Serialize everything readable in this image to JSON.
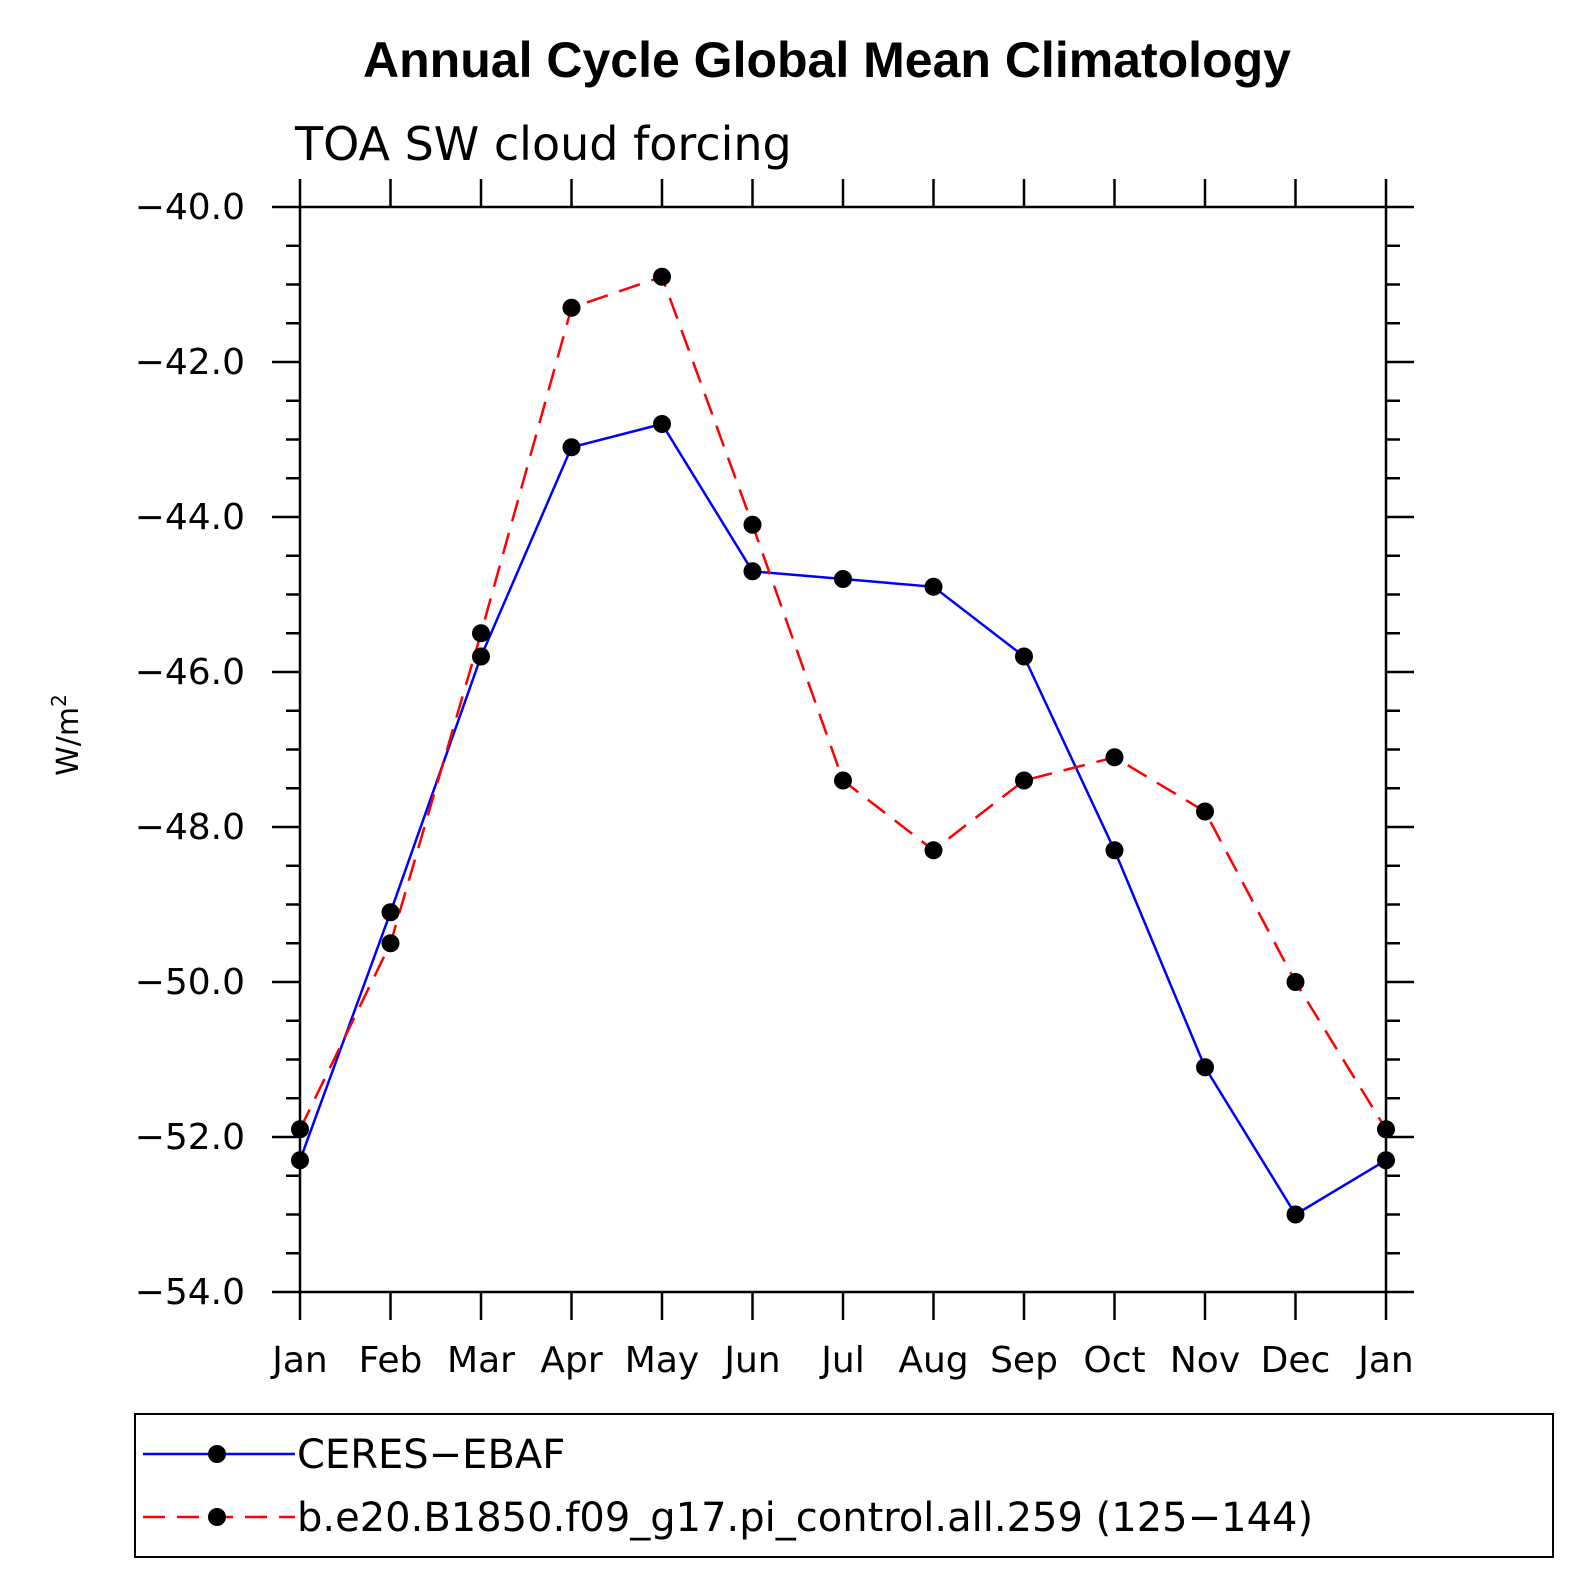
{
  "chart_data": {
    "type": "line",
    "title": "Annual Cycle Global Mean Climatology",
    "subtitle": "TOA SW cloud forcing",
    "xlabel": "",
    "ylabel": "W/m",
    "ylabel_superscript": "2",
    "categories": [
      "Jan",
      "Feb",
      "Mar",
      "Apr",
      "May",
      "Jun",
      "Jul",
      "Aug",
      "Sep",
      "Oct",
      "Nov",
      "Dec",
      "Jan"
    ],
    "ylim": [
      -54.0,
      -40.0
    ],
    "yticks": [
      -40.0,
      -42.0,
      -44.0,
      -46.0,
      -48.0,
      -50.0,
      -52.0,
      -54.0
    ],
    "ytick_labels": [
      "−40.0",
      "−42.0",
      "−44.0",
      "−46.0",
      "−48.0",
      "−50.0",
      "−52.0",
      "−54.0"
    ],
    "series": [
      {
        "name": "CERES−EBAF",
        "color": "#0000ff",
        "dash": "solid",
        "values": [
          -52.3,
          -49.1,
          -45.8,
          -43.1,
          -42.8,
          -44.7,
          -44.8,
          -44.9,
          -45.8,
          -48.3,
          -51.1,
          -53.0,
          -52.3
        ]
      },
      {
        "name": "b.e20.B1850.f09_g17.pi_control.all.259 (125−144)",
        "color": "#ff0000",
        "dash": "dashed",
        "values": [
          -51.9,
          -49.5,
          -45.5,
          -41.3,
          -40.9,
          -44.1,
          -47.4,
          -48.3,
          -47.4,
          -47.1,
          -47.8,
          -50.0,
          -51.9
        ]
      }
    ],
    "legend_position": "bottom"
  }
}
